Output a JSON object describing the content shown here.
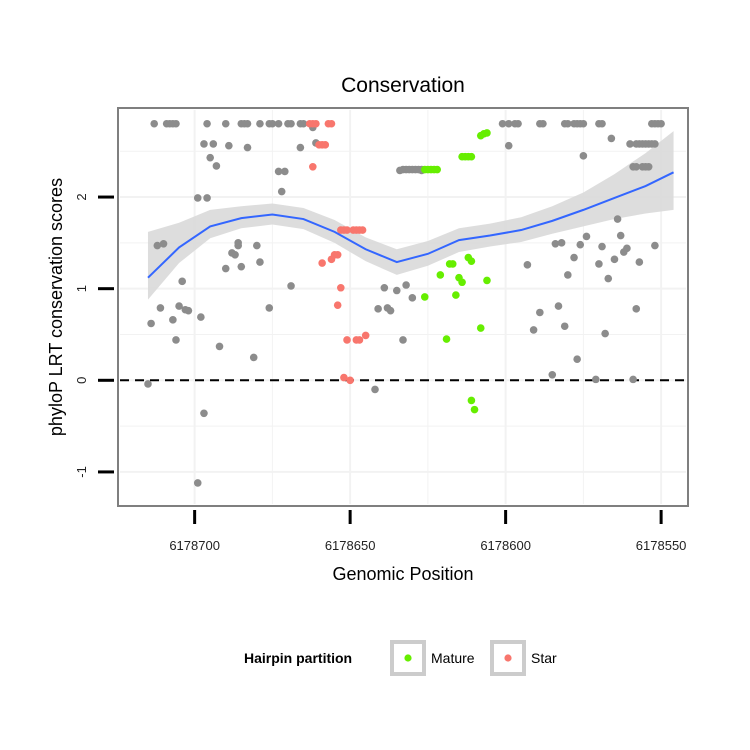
{
  "chart_data": {
    "type": "scatter",
    "title": "Conservation",
    "xlabel": "Genomic Position",
    "ylabel": "phyloP LRT conservation scores",
    "x_reversed": true,
    "xlim": [
      6178724,
      6178542
    ],
    "ylim": [
      -1.35,
      2.95
    ],
    "x_ticks": [
      6178700,
      6178650,
      6178600,
      6178550
    ],
    "y_ticks": [
      -1,
      0,
      1,
      2
    ],
    "grid": true,
    "reference_line": {
      "y": 0,
      "style": "dashed"
    },
    "legend": {
      "title": "Hairpin partition",
      "position": "bottom",
      "entries": [
        {
          "label": "Mature",
          "color": "#66ee00"
        },
        {
          "label": "Star",
          "color": "#f8766d"
        }
      ]
    },
    "colors": {
      "other": "#8c8c8c",
      "Mature": "#66ee00",
      "Star": "#f8766d",
      "smooth": "#3366ff",
      "ribbon": "#d9d9d9"
    },
    "series": [
      {
        "key": "other",
        "points": [
          [
            6178715,
            -0.04
          ],
          [
            6178714,
            0.62
          ],
          [
            6178712,
            1.47
          ],
          [
            6178711,
            0.79
          ],
          [
            6178710,
            1.49
          ],
          [
            6178707,
            0.66
          ],
          [
            6178706,
            0.44
          ],
          [
            6178705,
            0.81
          ],
          [
            6178704,
            1.08
          ],
          [
            6178703,
            0.77
          ],
          [
            6178702,
            0.76
          ],
          [
            6178699,
            1.99
          ],
          [
            6178698,
            0.69
          ],
          [
            6178697,
            -0.36
          ],
          [
            6178696,
            1.99
          ],
          [
            6178695,
            2.43
          ],
          [
            6178694,
            2.58
          ],
          [
            6178693,
            2.34
          ],
          [
            6178692,
            0.37
          ],
          [
            6178690,
            1.22
          ],
          [
            6178689,
            2.56
          ],
          [
            6178688,
            1.39
          ],
          [
            6178687,
            1.37
          ],
          [
            6178686,
            1.47
          ],
          [
            6178685,
            1.24
          ],
          [
            6178683,
            2.54
          ],
          [
            6178681,
            0.25
          ],
          [
            6178680,
            1.47
          ],
          [
            6178679,
            1.29
          ],
          [
            6178676,
            0.79
          ],
          [
            6178673,
            2.28
          ],
          [
            6178672,
            2.06
          ],
          [
            6178671,
            2.28
          ],
          [
            6178669,
            1.03
          ],
          [
            6178666,
            2.54
          ],
          [
            6178662,
            2.76
          ],
          [
            6178661,
            2.59
          ],
          [
            6178642,
            -0.1
          ],
          [
            6178641,
            0.78
          ],
          [
            6178639,
            1.01
          ],
          [
            6178638,
            0.79
          ],
          [
            6178637,
            0.76
          ],
          [
            6178635,
            0.98
          ],
          [
            6178634,
            2.29
          ],
          [
            6178633,
            0.44
          ],
          [
            6178632,
            1.04
          ],
          [
            6178630,
            0.9
          ],
          [
            6178627,
            2.29
          ],
          [
            6178593,
            1.26
          ],
          [
            6178591,
            0.55
          ],
          [
            6178589,
            0.74
          ],
          [
            6178584,
            1.49
          ],
          [
            6178583,
            0.81
          ],
          [
            6178582,
            1.5
          ],
          [
            6178581,
            0.59
          ],
          [
            6178580,
            1.15
          ],
          [
            6178578,
            1.34
          ],
          [
            6178577,
            0.23
          ],
          [
            6178576,
            1.48
          ],
          [
            6178575,
            2.45
          ],
          [
            6178574,
            1.57
          ],
          [
            6178571,
            0.01
          ],
          [
            6178570,
            1.27
          ],
          [
            6178569,
            1.46
          ],
          [
            6178568,
            0.51
          ],
          [
            6178567,
            1.11
          ],
          [
            6178566,
            2.64
          ],
          [
            6178565,
            1.32
          ],
          [
            6178564,
            1.76
          ],
          [
            6178563,
            1.58
          ],
          [
            6178562,
            1.4
          ],
          [
            6178561,
            1.44
          ],
          [
            6178559,
            0.01
          ],
          [
            6178558,
            0.78
          ],
          [
            6178557,
            1.29
          ],
          [
            6178552,
            1.47
          ],
          [
            6178585,
            0.06
          ],
          [
            6178599,
            2.56
          ],
          [
            6178699,
            -1.12
          ],
          [
            6178686,
            1.5
          ],
          [
            6178697,
            2.58
          ]
        ]
      },
      {
        "key": "other_capped",
        "points": [
          [
            6178713,
            2.8
          ],
          [
            6178709,
            2.8
          ],
          [
            6178708,
            2.8
          ],
          [
            6178707,
            2.8
          ],
          [
            6178706,
            2.8
          ],
          [
            6178696,
            2.8
          ],
          [
            6178690,
            2.8
          ],
          [
            6178685,
            2.8
          ],
          [
            6178684,
            2.8
          ],
          [
            6178683,
            2.8
          ],
          [
            6178679,
            2.8
          ],
          [
            6178676,
            2.8
          ],
          [
            6178675,
            2.8
          ],
          [
            6178673,
            2.8
          ],
          [
            6178670,
            2.8
          ],
          [
            6178669,
            2.8
          ],
          [
            6178666,
            2.8
          ],
          [
            6178665,
            2.8
          ],
          [
            6178601,
            2.8
          ],
          [
            6178599,
            2.8
          ],
          [
            6178597,
            2.8
          ],
          [
            6178596,
            2.8
          ],
          [
            6178589,
            2.8
          ],
          [
            6178588,
            2.8
          ],
          [
            6178581,
            2.8
          ],
          [
            6178580,
            2.8
          ],
          [
            6178578,
            2.8
          ],
          [
            6178577,
            2.8
          ],
          [
            6178576,
            2.8
          ],
          [
            6178575,
            2.8
          ],
          [
            6178570,
            2.8
          ],
          [
            6178569,
            2.8
          ],
          [
            6178553,
            2.8
          ],
          [
            6178552,
            2.8
          ],
          [
            6178551,
            2.8
          ],
          [
            6178550,
            2.8
          ],
          [
            6178560,
            2.58
          ],
          [
            6178558,
            2.58
          ],
          [
            6178557,
            2.58
          ],
          [
            6178556,
            2.58
          ],
          [
            6178555,
            2.58
          ],
          [
            6178554,
            2.58
          ],
          [
            6178553,
            2.58
          ],
          [
            6178552,
            2.58
          ],
          [
            6178559,
            2.33
          ],
          [
            6178558,
            2.33
          ],
          [
            6178556,
            2.33
          ],
          [
            6178555,
            2.33
          ],
          [
            6178554,
            2.33
          ],
          [
            6178633,
            2.3
          ],
          [
            6178632,
            2.3
          ],
          [
            6178631,
            2.3
          ],
          [
            6178630,
            2.3
          ],
          [
            6178629,
            2.3
          ],
          [
            6178628,
            2.3
          ],
          [
            6178627,
            2.3
          ]
        ]
      },
      {
        "key": "Star",
        "points": [
          [
            6178663,
            2.8
          ],
          [
            6178662,
            2.8
          ],
          [
            6178661,
            2.8
          ],
          [
            6178657,
            2.8
          ],
          [
            6178656,
            2.8
          ],
          [
            6178662,
            2.33
          ],
          [
            6178660,
            2.57
          ],
          [
            6178659,
            2.57
          ],
          [
            6178658,
            2.57
          ],
          [
            6178653,
            1.64
          ],
          [
            6178652,
            1.64
          ],
          [
            6178651,
            1.64
          ],
          [
            6178649,
            1.64
          ],
          [
            6178648,
            1.64
          ],
          [
            6178647,
            1.64
          ],
          [
            6178646,
            1.64
          ],
          [
            6178659,
            1.28
          ],
          [
            6178656,
            1.32
          ],
          [
            6178655,
            1.37
          ],
          [
            6178654,
            1.37
          ],
          [
            6178654,
            0.82
          ],
          [
            6178653,
            1.01
          ],
          [
            6178651,
            0.44
          ],
          [
            6178648,
            0.44
          ],
          [
            6178647,
            0.44
          ],
          [
            6178645,
            0.49
          ],
          [
            6178652,
            0.03
          ],
          [
            6178650,
            0.0
          ]
        ]
      },
      {
        "key": "Mature",
        "points": [
          [
            6178626,
            2.3
          ],
          [
            6178625,
            2.3
          ],
          [
            6178624,
            2.3
          ],
          [
            6178623,
            2.3
          ],
          [
            6178622,
            2.3
          ],
          [
            6178614,
            2.44
          ],
          [
            6178613,
            2.44
          ],
          [
            6178612,
            2.44
          ],
          [
            6178611,
            2.44
          ],
          [
            6178608,
            2.67
          ],
          [
            6178607,
            2.69
          ],
          [
            6178606,
            2.7
          ],
          [
            6178618,
            1.27
          ],
          [
            6178617,
            1.27
          ],
          [
            6178615,
            1.12
          ],
          [
            6178614,
            1.07
          ],
          [
            6178612,
            1.34
          ],
          [
            6178611,
            1.3
          ],
          [
            6178606,
            1.09
          ],
          [
            6178616,
            0.93
          ],
          [
            6178626,
            0.91
          ],
          [
            6178621,
            1.15
          ],
          [
            6178619,
            0.45
          ],
          [
            6178608,
            0.57
          ],
          [
            6178611,
            -0.22
          ],
          [
            6178610,
            -0.32
          ]
        ]
      }
    ],
    "smooth": [
      {
        "x": 6178715,
        "y": 1.12,
        "lo": 0.88,
        "hi": 1.62
      },
      {
        "x": 6178705,
        "y": 1.45,
        "lo": 1.28,
        "hi": 1.72
      },
      {
        "x": 6178695,
        "y": 1.68,
        "lo": 1.55,
        "hi": 1.86
      },
      {
        "x": 6178685,
        "y": 1.77,
        "lo": 1.66,
        "hi": 1.9
      },
      {
        "x": 6178675,
        "y": 1.81,
        "lo": 1.7,
        "hi": 1.93
      },
      {
        "x": 6178665,
        "y": 1.76,
        "lo": 1.65,
        "hi": 1.88
      },
      {
        "x": 6178655,
        "y": 1.62,
        "lo": 1.5,
        "hi": 1.75
      },
      {
        "x": 6178645,
        "y": 1.43,
        "lo": 1.3,
        "hi": 1.56
      },
      {
        "x": 6178635,
        "y": 1.29,
        "lo": 1.15,
        "hi": 1.43
      },
      {
        "x": 6178625,
        "y": 1.38,
        "lo": 1.25,
        "hi": 1.52
      },
      {
        "x": 6178615,
        "y": 1.53,
        "lo": 1.4,
        "hi": 1.66
      },
      {
        "x": 6178605,
        "y": 1.58,
        "lo": 1.46,
        "hi": 1.71
      },
      {
        "x": 6178595,
        "y": 1.64,
        "lo": 1.51,
        "hi": 1.78
      },
      {
        "x": 6178585,
        "y": 1.74,
        "lo": 1.6,
        "hi": 1.9
      },
      {
        "x": 6178575,
        "y": 1.86,
        "lo": 1.68,
        "hi": 2.05
      },
      {
        "x": 6178565,
        "y": 1.99,
        "lo": 1.76,
        "hi": 2.25
      },
      {
        "x": 6178555,
        "y": 2.12,
        "lo": 1.82,
        "hi": 2.48
      },
      {
        "x": 6178546,
        "y": 2.27,
        "lo": 1.86,
        "hi": 2.72
      }
    ]
  }
}
